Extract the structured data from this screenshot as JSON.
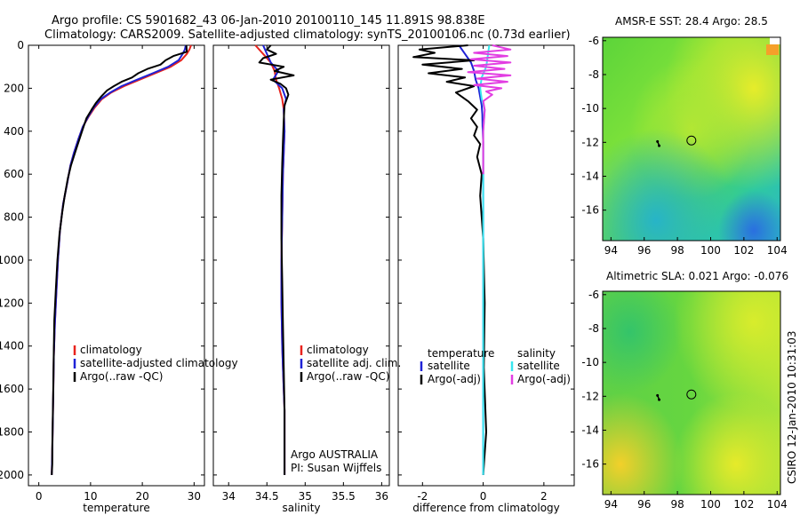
{
  "figure": {
    "title_line1": "Argo profile: CS 5901682_43 06-Jan-2010 20100110_145 11.891S 98.838E",
    "title_line2": "Climatology: CARS2009. Satellite-adjusted climatology: synTS_20100106.nc (0.73d earlier)",
    "footer": "CSIRO 12-Jan-2010 10:31:03"
  },
  "colors": {
    "climatology": "#e8231d",
    "satellite": "#1f22d6",
    "argo": "#000000",
    "sat_salinity": "#38e6ef",
    "argo_adj_salinity": "#e23ee2"
  },
  "chart_data": [
    {
      "type": "line",
      "panel": "temperature",
      "xlabel": "temperature",
      "xlim": [
        -2,
        32
      ],
      "ylim": [
        2050,
        0
      ],
      "xticks": [
        0,
        10,
        20,
        30
      ],
      "yticks": [
        0,
        200,
        400,
        600,
        800,
        1000,
        1200,
        1400,
        1600,
        1800,
        2000
      ],
      "legend": [
        "climatology",
        "satellite-adjusted climatology",
        "Argo(..raw -QC)"
      ],
      "series": [
        {
          "name": "climatology",
          "color_key": "climatology",
          "x": [
            29.4,
            29.1,
            28.6,
            27.5,
            25.5,
            22.5,
            19.5,
            16.5,
            14.0,
            12.2,
            10.8,
            9.7,
            8.5,
            7.6,
            6.8,
            6.1,
            5.5,
            4.7,
            4.1,
            3.7,
            3.4,
            3.1,
            2.9,
            2.8,
            2.7,
            2.6,
            2.5
          ],
          "y": [
            0,
            20,
            40,
            70,
            100,
            130,
            160,
            190,
            220,
            250,
            290,
            330,
            380,
            440,
            500,
            560,
            640,
            740,
            860,
            1000,
            1150,
            1300,
            1450,
            1600,
            1750,
            1900,
            2000
          ]
        },
        {
          "name": "satellite-adjusted climatology",
          "color_key": "satellite",
          "x": [
            28.4,
            28.2,
            27.8,
            27.0,
            25.0,
            22.0,
            19.0,
            16.0,
            13.8,
            12.0,
            10.6,
            9.6,
            8.5,
            7.6,
            6.8,
            6.1,
            5.5,
            4.7,
            4.1,
            3.7,
            3.4,
            3.1,
            2.9,
            2.8,
            2.7,
            2.6,
            2.5
          ],
          "y": [
            0,
            20,
            40,
            70,
            100,
            130,
            160,
            190,
            220,
            250,
            290,
            330,
            380,
            440,
            500,
            560,
            640,
            740,
            860,
            1000,
            1150,
            1300,
            1450,
            1600,
            1750,
            1900,
            2000
          ]
        },
        {
          "name": "Argo(..raw -QC)",
          "color_key": "argo",
          "x": [
            28.5,
            28.6,
            26.0,
            24.5,
            23.5,
            21.0,
            19.2,
            18.0,
            16.0,
            14.5,
            13.2,
            12.0,
            11.0,
            10.2,
            9.2,
            8.5,
            7.8,
            7.0,
            6.2,
            5.6,
            5.0,
            4.5,
            4.0,
            3.6,
            3.3,
            3.0,
            2.9,
            2.8,
            2.7,
            2.6,
            2.6,
            2.5
          ],
          "y": [
            0,
            30,
            50,
            70,
            90,
            110,
            130,
            150,
            170,
            190,
            210,
            240,
            270,
            300,
            340,
            390,
            440,
            500,
            560,
            620,
            700,
            780,
            880,
            1000,
            1130,
            1280,
            1430,
            1580,
            1730,
            1880,
            1950,
            2000
          ]
        }
      ]
    },
    {
      "type": "line",
      "panel": "salinity",
      "xlabel": "salinity",
      "xlim": [
        33.8,
        36.1
      ],
      "ylim": [
        2050,
        0
      ],
      "xticks": [
        34,
        34.5,
        35,
        35.5,
        36
      ],
      "xtick_labels": [
        "34",
        "34.5",
        "35",
        "35.5",
        "36"
      ],
      "legend": [
        "climatology",
        "satellite adj. clim.",
        "Argo(..raw -QC)"
      ],
      "annotation_line1": "Argo AUSTRALIA",
      "annotation_line2": "PI: Susan Wijffels",
      "series": [
        {
          "name": "climatology",
          "color_key": "climatology",
          "x": [
            34.35,
            34.45,
            34.55,
            34.6,
            34.62,
            34.66,
            34.7,
            34.72,
            34.73,
            34.72,
            34.71,
            34.7,
            34.69,
            34.69,
            34.7,
            34.71,
            34.72,
            34.73,
            34.73,
            34.73
          ],
          "y": [
            0,
            40,
            80,
            120,
            160,
            200,
            250,
            300,
            400,
            500,
            600,
            800,
            1000,
            1200,
            1400,
            1500,
            1600,
            1700,
            1850,
            2000
          ]
        },
        {
          "name": "satellite adj. clim.",
          "color_key": "satellite",
          "x": [
            34.45,
            34.5,
            34.55,
            34.65,
            34.58,
            34.7,
            34.75,
            34.72,
            34.73,
            34.72,
            34.71,
            34.7,
            34.69,
            34.69,
            34.7,
            34.71,
            34.72,
            34.73,
            34.73,
            34.73
          ],
          "y": [
            0,
            40,
            80,
            120,
            160,
            200,
            250,
            300,
            400,
            500,
            600,
            800,
            1000,
            1200,
            1400,
            1500,
            1600,
            1700,
            1850,
            2000
          ]
        },
        {
          "name": "Argo(..raw -QC)",
          "color_key": "argo",
          "x": [
            34.55,
            34.5,
            34.62,
            34.45,
            34.4,
            34.72,
            34.6,
            34.85,
            34.55,
            34.68,
            34.75,
            34.78,
            34.73,
            34.72,
            34.71,
            34.7,
            34.69,
            34.69,
            34.7,
            34.71,
            34.72,
            34.73,
            34.73,
            34.73
          ],
          "y": [
            0,
            20,
            40,
            60,
            80,
            100,
            120,
            140,
            160,
            180,
            200,
            230,
            280,
            350,
            450,
            550,
            700,
            900,
            1100,
            1300,
            1500,
            1700,
            1900,
            2000
          ]
        }
      ]
    },
    {
      "type": "line",
      "panel": "difference",
      "xlabel": "difference from climatology",
      "xlim": [
        -2.8,
        3.0
      ],
      "ylim": [
        2050,
        0
      ],
      "xticks": [
        -2,
        0,
        2
      ],
      "legend_header_left": "temperature",
      "legend_header_right": "salinity",
      "legend_left": [
        "satellite",
        "Argo(-adj)"
      ],
      "legend_right": [
        "satellite",
        "Argo(-adj)"
      ],
      "series": [
        {
          "name": "temperature satellite",
          "color_key": "satellite",
          "x": [
            -0.8,
            -0.6,
            -0.4,
            -0.3,
            -0.25,
            -0.15,
            -0.1,
            -0.05,
            -0.03,
            -0.02,
            0,
            0,
            0,
            0,
            0,
            0,
            0,
            0
          ],
          "y": [
            0,
            40,
            80,
            120,
            160,
            200,
            240,
            280,
            320,
            380,
            450,
            600,
            800,
            1000,
            1300,
            1600,
            1800,
            2000
          ]
        },
        {
          "name": "temperature Argo(-adj)",
          "color_key": "argo",
          "x": [
            -0.5,
            -2.1,
            -1.6,
            -2.3,
            -0.3,
            -2.0,
            -0.7,
            -1.8,
            -0.6,
            -1.2,
            -0.3,
            -0.9,
            -0.5,
            -0.2,
            -0.4,
            -0.2,
            -0.3,
            -0.1,
            -0.2,
            -0.05,
            -0.1,
            0,
            0.05,
            0.02,
            0.1,
            0
          ],
          "y": [
            0,
            20,
            35,
            55,
            70,
            90,
            110,
            130,
            150,
            170,
            190,
            220,
            260,
            300,
            340,
            380,
            420,
            460,
            520,
            600,
            700,
            900,
            1200,
            1500,
            1800,
            2000
          ]
        },
        {
          "name": "salinity satellite",
          "color_key": "sat_salinity",
          "x": [
            0.2,
            0.15,
            0.1,
            -0.05,
            -0.1,
            -0.05,
            0.05,
            0,
            0,
            0,
            0,
            0,
            0,
            0,
            0,
            0
          ],
          "y": [
            0,
            50,
            100,
            150,
            200,
            250,
            300,
            400,
            500,
            700,
            900,
            1100,
            1400,
            1700,
            1900,
            2000
          ]
        },
        {
          "name": "salinity Argo(-adj)",
          "color_key": "argo_adj_salinity",
          "x": [
            0.3,
            0.9,
            -0.3,
            0.8,
            -0.4,
            0.9,
            -0.3,
            0.7,
            -0.5,
            0.9,
            -0.2,
            0.8,
            -0.3,
            0.6,
            0.1,
            0.3,
            0,
            0.05,
            0,
            0,
            0
          ],
          "y": [
            0,
            20,
            35,
            50,
            65,
            80,
            95,
            110,
            125,
            140,
            155,
            170,
            185,
            200,
            215,
            230,
            260,
            300,
            400,
            500,
            600
          ]
        }
      ]
    },
    {
      "type": "heatmap",
      "panel": "sst_map",
      "title": "AMSR-E SST: 28.4  Argo: 28.5",
      "xlim": [
        93.5,
        104.2
      ],
      "ylim": [
        -17.8,
        -5.8
      ],
      "xticks": [
        94,
        96,
        98,
        100,
        102,
        104
      ],
      "yticks": [
        -6,
        -8,
        -10,
        -12,
        -14,
        -16
      ],
      "profile_marker": {
        "lon": 98.84,
        "lat": -11.89
      },
      "track": [
        {
          "lon": 96.9,
          "lat": -12.2
        },
        {
          "lon": 96.8,
          "lat": -11.95
        }
      ]
    },
    {
      "type": "heatmap",
      "panel": "sla_map",
      "title": "Altimetric SLA: 0.021  Argo: -0.076",
      "xlim": [
        93.5,
        104.2
      ],
      "ylim": [
        -17.8,
        -5.8
      ],
      "xticks": [
        94,
        96,
        98,
        100,
        102,
        104
      ],
      "yticks": [
        -6,
        -8,
        -10,
        -12,
        -14,
        -16
      ],
      "profile_marker": {
        "lon": 98.84,
        "lat": -11.89
      },
      "track": [
        {
          "lon": 96.9,
          "lat": -12.2
        },
        {
          "lon": 96.8,
          "lat": -11.95
        }
      ]
    }
  ]
}
